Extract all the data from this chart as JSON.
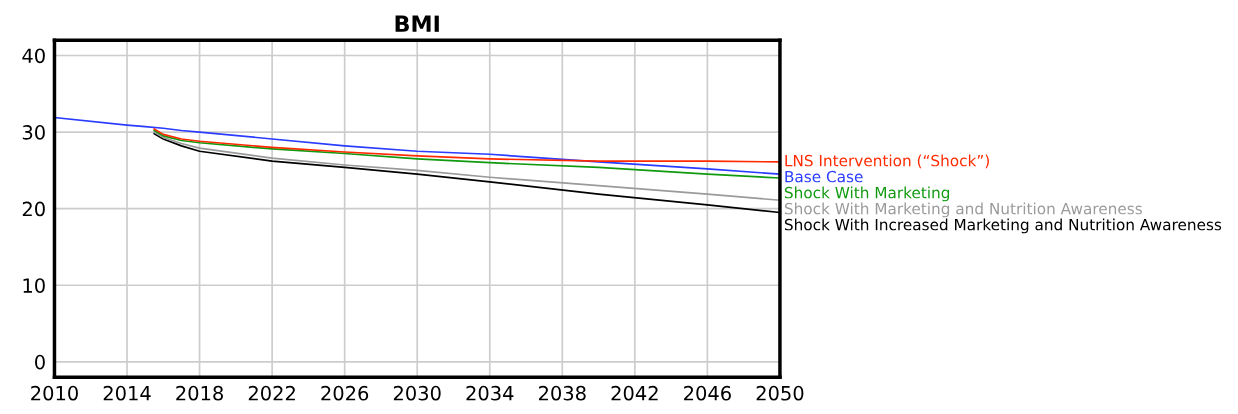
{
  "chart_data": {
    "type": "line",
    "title": "BMI",
    "xlim": [
      2010,
      2050
    ],
    "xticks": [
      2010,
      2014,
      2018,
      2022,
      2026,
      2030,
      2034,
      2038,
      2042,
      2046,
      2050
    ],
    "ylim": [
      -2,
      42
    ],
    "yticks": [
      0,
      10,
      20,
      30,
      40
    ],
    "grid": true,
    "legend": false,
    "marker": "none",
    "line_style": "solid",
    "x": [
      2010,
      2014,
      2015,
      2016,
      2017,
      2018,
      2022,
      2026,
      2030,
      2034,
      2040,
      2046,
      2050
    ],
    "series": [
      {
        "name": "LNS Intervention (“Shock”)",
        "color": "#ff2a00",
        "x": [
          2015.5,
          2016,
          2017,
          2018,
          2022,
          2026,
          2030,
          2034,
          2040,
          2046,
          2050
        ],
        "values": [
          30.4,
          29.7,
          29.1,
          28.8,
          28.0,
          27.4,
          26.9,
          26.5,
          26.2,
          26.2,
          26.1
        ]
      },
      {
        "name": "Base Case",
        "color": "#2a3cff",
        "values": [
          31.9,
          30.9,
          30.7,
          30.5,
          30.2,
          30.0,
          29.1,
          28.2,
          27.5,
          27.1,
          26.1,
          25.2,
          24.5
        ]
      },
      {
        "name": "Shock With Marketing",
        "color": "#109a10",
        "x": [
          2015.5,
          2016,
          2017,
          2018,
          2022,
          2026,
          2030,
          2034,
          2040,
          2046,
          2050
        ],
        "values": [
          30.2,
          29.5,
          28.9,
          28.6,
          27.8,
          27.2,
          26.5,
          26.0,
          25.4,
          24.5,
          24.0
        ]
      },
      {
        "name": "Shock With Marketing and Nutrition Awareness",
        "color": "#9a9a9a",
        "x": [
          2015.5,
          2016,
          2017,
          2018,
          2022,
          2026,
          2030,
          2034,
          2040,
          2046,
          2050
        ],
        "values": [
          30.0,
          29.3,
          28.5,
          27.9,
          26.6,
          25.7,
          25.0,
          24.1,
          23.0,
          21.9,
          21.1
        ]
      },
      {
        "name": "Shock With Increased Marketing and Nutrition Awareness",
        "color": "#000000",
        "x": [
          2015.5,
          2016,
          2017,
          2018,
          2022,
          2026,
          2030,
          2034,
          2040,
          2046,
          2050
        ],
        "values": [
          29.8,
          29.1,
          28.2,
          27.5,
          26.2,
          25.4,
          24.5,
          23.5,
          21.9,
          20.5,
          19.5
        ]
      }
    ]
  }
}
